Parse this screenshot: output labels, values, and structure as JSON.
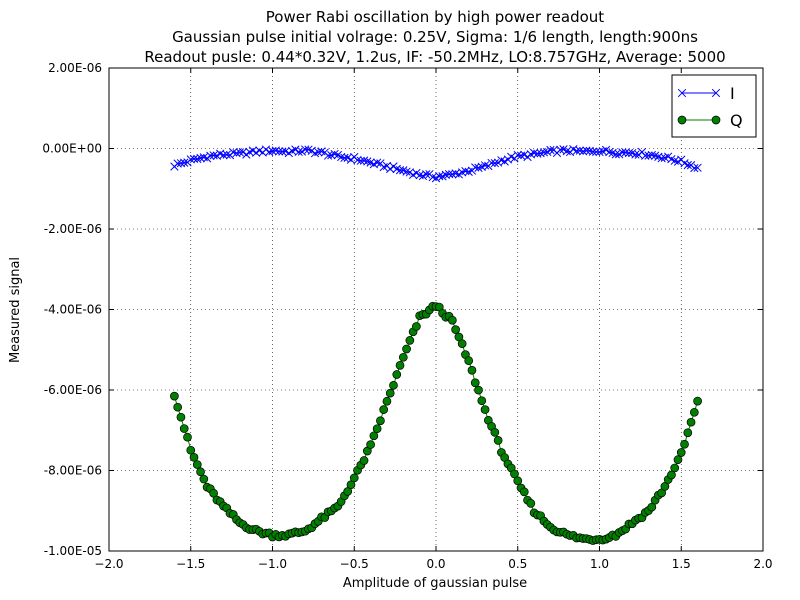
{
  "chart_data": {
    "type": "scatter",
    "title_lines": [
      "Power Rabi oscillation by high power readout",
      "Gaussian pulse initial volrage: 0.25V, Sigma: 1/6 length, length:900ns",
      "Readout pusle: 0.44*0.32V, 1.2us, IF: -50.2MHz, LO:8.757GHz, Average: 5000"
    ],
    "xlabel": "Amplitude of gaussian pulse",
    "ylabel": "Measured signal",
    "xlim": [
      -2.0,
      2.0
    ],
    "ylim": [
      -1e-05,
      2e-06
    ],
    "xticks": [
      -2.0,
      -1.5,
      -1.0,
      -0.5,
      0.0,
      0.5,
      1.0,
      1.5,
      2.0
    ],
    "xtick_labels": [
      "−2.0",
      "−1.5",
      "−1.0",
      "−0.5",
      "0.0",
      "0.5",
      "1.0",
      "1.5",
      "2.0"
    ],
    "yticks": [
      2e-06,
      0.0,
      -2e-06,
      -4e-06,
      -6e-06,
      -8e-06,
      -1e-05
    ],
    "ytick_labels": [
      "2.00E-06",
      "0.00E+00",
      "-2.00E-06",
      "-4.00E-06",
      "-6.00E-06",
      "-8.00E-06",
      "-1.00E-05"
    ],
    "grid": true,
    "legend_position": "top-right",
    "series": [
      {
        "name": "I",
        "color": "#0000ff",
        "marker": "x",
        "x_range": [
          -1.6,
          1.6
        ],
        "points": 161,
        "x": [
          -1.6,
          -1.5,
          -1.4,
          -1.3,
          -1.2,
          -1.1,
          -1.0,
          -0.9,
          -0.8,
          -0.7,
          -0.6,
          -0.5,
          -0.4,
          -0.3,
          -0.2,
          -0.1,
          0.0,
          0.1,
          0.2,
          0.3,
          0.4,
          0.5,
          0.6,
          0.7,
          0.8,
          0.9,
          1.0,
          1.1,
          1.2,
          1.3,
          1.4,
          1.5,
          1.6
        ],
        "y": [
          -4.2e-07,
          -3e-07,
          -2e-07,
          -1.5e-07,
          -1.3e-07,
          -8e-08,
          -5e-08,
          -8e-08,
          -5e-08,
          -1e-07,
          -2e-07,
          -2.5e-07,
          -3.5e-07,
          -4.5e-07,
          -5.5e-07,
          -6.5e-07,
          -7e-07,
          -6.5e-07,
          -5.5e-07,
          -4.5e-07,
          -3e-07,
          -2e-07,
          -1.5e-07,
          -8e-08,
          -5e-08,
          -8e-08,
          -5e-08,
          -1e-07,
          -1e-07,
          -1.5e-07,
          -2.2e-07,
          -3.2e-07,
          -4.8e-07
        ]
      },
      {
        "name": "Q",
        "color": "#007f00",
        "marker": "o",
        "x_range": [
          -1.6,
          1.6
        ],
        "points": 161,
        "x": [
          -1.6,
          -1.5,
          -1.4,
          -1.3,
          -1.2,
          -1.1,
          -1.0,
          -0.9,
          -0.8,
          -0.7,
          -0.6,
          -0.5,
          -0.4,
          -0.3,
          -0.2,
          -0.1,
          0.0,
          0.1,
          0.2,
          0.3,
          0.4,
          0.5,
          0.6,
          0.7,
          0.8,
          0.9,
          1.0,
          1.1,
          1.2,
          1.3,
          1.4,
          1.5,
          1.6
        ],
        "y": [
          -6.1e-06,
          -7.5e-06,
          -8.4e-06,
          -8.9e-06,
          -9.3e-06,
          -9.5e-06,
          -9.6e-06,
          -9.6e-06,
          -9.5e-06,
          -9.2e-06,
          -8.9e-06,
          -8.2e-06,
          -7.4e-06,
          -6.3e-06,
          -5.2e-06,
          -4.2e-06,
          -3.9e-06,
          -4.3e-06,
          -5.3e-06,
          -6.5e-06,
          -7.5e-06,
          -8.3e-06,
          -9e-06,
          -9.4e-06,
          -9.6e-06,
          -9.7e-06,
          -9.7e-06,
          -9.6e-06,
          -9.3e-06,
          -9e-06,
          -8.4e-06,
          -7.6e-06,
          -6.3e-06
        ]
      }
    ]
  }
}
